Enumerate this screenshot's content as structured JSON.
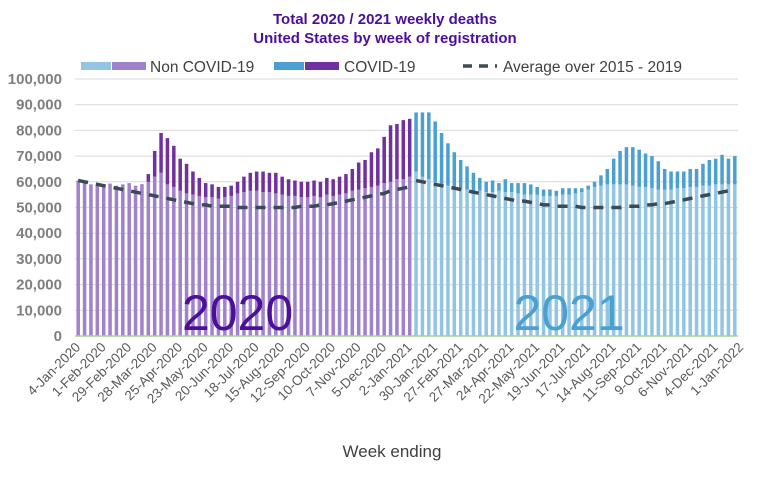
{
  "chart_data": {
    "type": "bar",
    "stacked": true,
    "title": "Total 2020 / 2021 weekly deaths",
    "subtitle": "United States by week of registration",
    "xlabel": "Week ending",
    "ylabel": "",
    "ylim": [
      0,
      100000
    ],
    "yticks": [
      0,
      10000,
      20000,
      30000,
      40000,
      50000,
      60000,
      70000,
      80000,
      90000,
      100000
    ],
    "ytick_labels": [
      "0",
      "10,000",
      "20,000",
      "30,000",
      "40,000",
      "50,000",
      "60,000",
      "70,000",
      "80,000",
      "90,000",
      "100,000"
    ],
    "grid": true,
    "legend_position": "top",
    "legend": [
      {
        "name": "Non COVID-19",
        "colors": [
          "#92c5e3",
          "#a082cc"
        ]
      },
      {
        "name": "COVID-19",
        "colors": [
          "#4ba0d2",
          "#7030a0"
        ]
      },
      {
        "name": "Average over 2015 - 2019",
        "style": "dashed",
        "color": "#3b4a54"
      }
    ],
    "year_annotations": [
      {
        "text": "2020",
        "color": "#4b0f9b"
      },
      {
        "text": "2021",
        "color": "#4ba0d2"
      }
    ],
    "colors": {
      "non_covid_2020": "#a082cc",
      "covid_2020": "#7030a0",
      "non_covid_2021": "#92c5e3",
      "covid_2021": "#4ba0d2",
      "average": "#3b4a54",
      "baseline": "#a9d18e",
      "title": "#4b0f9b"
    },
    "x_tick_labels": [
      "4-Jan-2020",
      "1-Feb-2020",
      "29-Feb-2020",
      "28-Mar-2020",
      "25-Apr-2020",
      "23-May-2020",
      "20-Jun-2020",
      "18-Jul-2020",
      "15-Aug-2020",
      "12-Sep-2020",
      "10-Oct-2020",
      "7-Nov-2020",
      "5-Dec-2020",
      "2-Jan-2021",
      "30-Jan-2021",
      "27-Feb-2021",
      "27-Mar-2021",
      "24-Apr-2021",
      "22-May-2021",
      "19-Jun-2021",
      "17-Jul-2021",
      "14-Aug-2021",
      "11-Sep-2021",
      "9-Oct-2021",
      "6-Nov-2021",
      "4-Dec-2021",
      "1-Jan-2022"
    ],
    "x_tick_every": 4,
    "weeks_2020": 53,
    "series": [
      {
        "name": "Non COVID-19",
        "values": [
          60500,
          59500,
          59000,
          58800,
          59000,
          59300,
          58500,
          59000,
          59500,
          58500,
          58800,
          60000,
          62000,
          63500,
          59000,
          58000,
          56500,
          55500,
          55000,
          54500,
          54000,
          54000,
          53500,
          54000,
          54500,
          55500,
          56000,
          56500,
          56500,
          56000,
          56000,
          55500,
          55000,
          54500,
          54500,
          54000,
          54000,
          54500,
          54000,
          55000,
          54500,
          55000,
          55500,
          56500,
          57000,
          57500,
          58000,
          58500,
          59500,
          60000,
          61000,
          61000,
          62000,
          64000,
          62000,
          61000,
          60000,
          59000,
          58500,
          58000,
          57500,
          57000,
          56500,
          56500,
          56000,
          56000,
          56500,
          56000,
          56000,
          55500,
          55000,
          55000,
          55000,
          54500,
          54500,
          54500,
          55000,
          55000,
          55500,
          56000,
          57000,
          58000,
          58500,
          59000,
          59000,
          59000,
          59000,
          58500,
          58000,
          58000,
          57500,
          57000,
          57000,
          57000,
          57500,
          57500,
          58000,
          58000,
          58500,
          58500,
          59000,
          59000,
          59000,
          59000
        ]
      },
      {
        "name": "COVID-19",
        "values": [
          0,
          0,
          0,
          0,
          0,
          0,
          0,
          0,
          0,
          0,
          200,
          3000,
          10000,
          15500,
          18000,
          16000,
          12500,
          11500,
          9000,
          7000,
          5500,
          5000,
          4500,
          4000,
          4000,
          4500,
          6000,
          7000,
          7500,
          8000,
          7500,
          8000,
          7000,
          6500,
          6000,
          6000,
          6000,
          6000,
          6000,
          6500,
          6500,
          7000,
          7500,
          8500,
          10500,
          11000,
          13500,
          14500,
          18000,
          22000,
          21500,
          23000,
          22500,
          23000,
          25000,
          26000,
          23500,
          20000,
          16500,
          13500,
          11000,
          9000,
          7000,
          5000,
          4000,
          4500,
          3000,
          5000,
          3500,
          4000,
          4500,
          4000,
          3000,
          2500,
          2500,
          2000,
          2500,
          2500,
          2000,
          1500,
          1500,
          2000,
          4000,
          6000,
          10000,
          13000,
          14500,
          15000,
          14500,
          13000,
          12500,
          11000,
          8000,
          7000,
          6500,
          6500,
          7000,
          7000,
          8500,
          10000,
          10000,
          11500,
          10000,
          11000
        ]
      },
      {
        "name": "Average over 2015 - 2019",
        "values": [
          60500,
          60000,
          59500,
          59000,
          58500,
          58000,
          57500,
          57000,
          56500,
          56000,
          55500,
          55000,
          54500,
          54000,
          53500,
          53000,
          52500,
          52000,
          51500,
          51000,
          51000,
          50500,
          50500,
          50500,
          50500,
          50000,
          50000,
          50000,
          50000,
          50000,
          50000,
          50000,
          50000,
          50000,
          50000,
          50500,
          50500,
          50500,
          51000,
          51000,
          51500,
          52000,
          52500,
          53000,
          53500,
          54000,
          54500,
          55000,
          55500,
          56500,
          57000,
          57500,
          58000,
          60500,
          60000,
          59500,
          59000,
          58500,
          58000,
          57500,
          57000,
          56500,
          56000,
          55500,
          55000,
          54500,
          54000,
          53500,
          53000,
          52500,
          52500,
          52000,
          51500,
          51000,
          51000,
          50500,
          50500,
          50500,
          50500,
          50000,
          50000,
          50000,
          50000,
          50000,
          50000,
          50000,
          50500,
          50500,
          50500,
          51000,
          51000,
          51500,
          51500,
          52000,
          52500,
          53000,
          53500,
          54000,
          54500,
          55000,
          55500,
          56000,
          56500,
          57000
        ]
      }
    ]
  }
}
